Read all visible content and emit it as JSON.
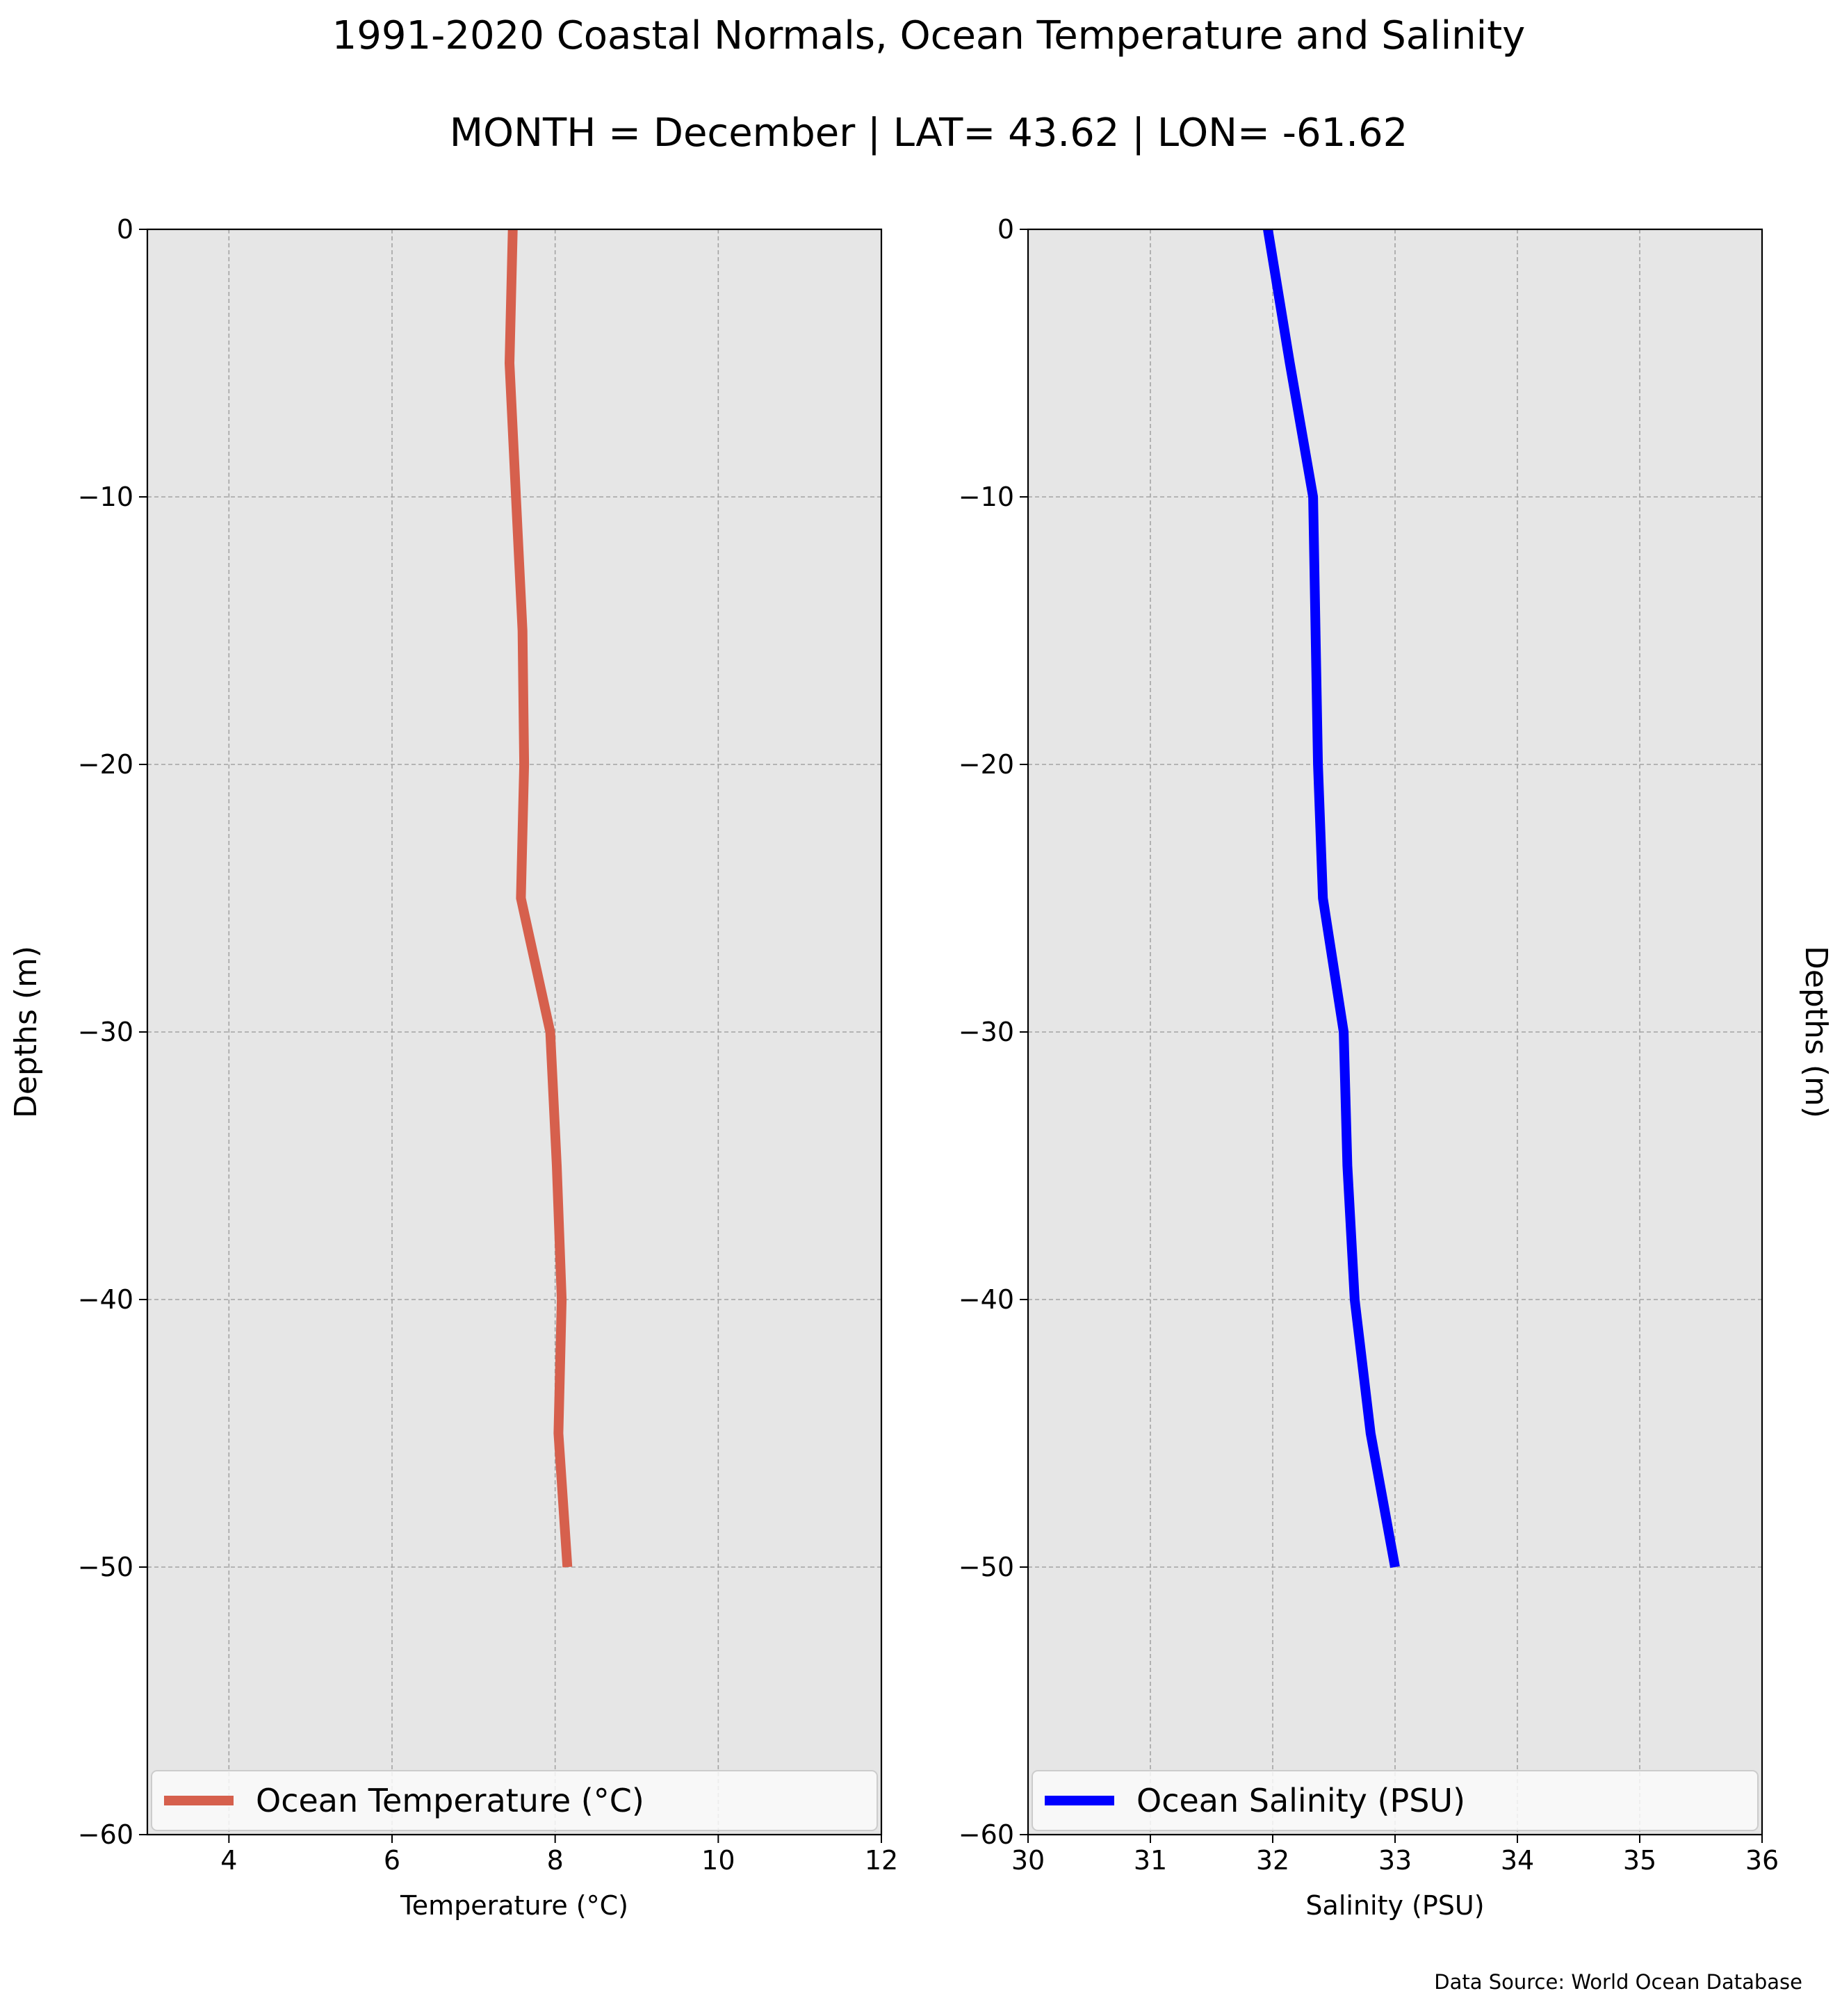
{
  "figure": {
    "title": "1991-2020 Coastal Normals, Ocean Temperature and Salinity",
    "subtitle": "MONTH = December | LAT= 43.62 | LON= -61.62",
    "source_note": "Data Source: World Ocean Database"
  },
  "chart_data": [
    {
      "type": "line",
      "orientation": "profile (value on x-axis, depth on y-axis)",
      "xlabel": "Temperature ($^\\circ$C)",
      "xlabel_display": "Temperature (°C)",
      "ylabel": "Depths (m)",
      "xlim": [
        3,
        12
      ],
      "ylim": [
        -60,
        0
      ],
      "xticks": [
        4,
        6,
        8,
        10,
        12
      ],
      "xtick_labels": [
        "4",
        "6",
        "8",
        "10",
        "12"
      ],
      "yticks": [
        0,
        -10,
        -20,
        -30,
        -40,
        -50,
        -60
      ],
      "ytick_labels": [
        "0",
        "−10",
        "−20",
        "−30",
        "−40",
        "−50",
        "−60"
      ],
      "grid": true,
      "legend": "lower center",
      "series": [
        {
          "name": "Ocean Temperature (°C)",
          "color": "#d6604d",
          "x": [
            7.48,
            7.44,
            7.52,
            7.6,
            7.62,
            7.58,
            7.94,
            8.02,
            8.08,
            8.04,
            8.15
          ],
          "y": [
            0,
            -5,
            -10,
            -15,
            -20,
            -25,
            -30,
            -35,
            -40,
            -45,
            -50
          ]
        }
      ]
    },
    {
      "type": "line",
      "orientation": "profile (value on x-axis, depth on y-axis)",
      "xlabel": "Salinity (PSU)",
      "ylabel": "Depths (m)",
      "ylabel_position": "right",
      "xlim": [
        30,
        36
      ],
      "ylim": [
        -60,
        0
      ],
      "xticks": [
        30,
        31,
        32,
        33,
        34,
        35,
        36
      ],
      "xtick_labels": [
        "30",
        "31",
        "32",
        "33",
        "34",
        "35",
        "36"
      ],
      "yticks": [
        0,
        -10,
        -20,
        -30,
        -40,
        -50,
        -60
      ],
      "ytick_labels": [
        "0",
        "−10",
        "−20",
        "−30",
        "−40",
        "−50",
        "−60"
      ],
      "grid": true,
      "legend": "lower center",
      "series": [
        {
          "name": "Ocean Salinity (PSU)",
          "color": "#0000ff",
          "x": [
            31.96,
            32.14,
            32.33,
            32.35,
            32.37,
            32.41,
            32.58,
            32.61,
            32.67,
            32.8,
            33.0
          ],
          "y": [
            0,
            -5,
            -10,
            -15,
            -20,
            -25,
            -30,
            -35,
            -40,
            -45,
            -50
          ]
        }
      ]
    }
  ]
}
